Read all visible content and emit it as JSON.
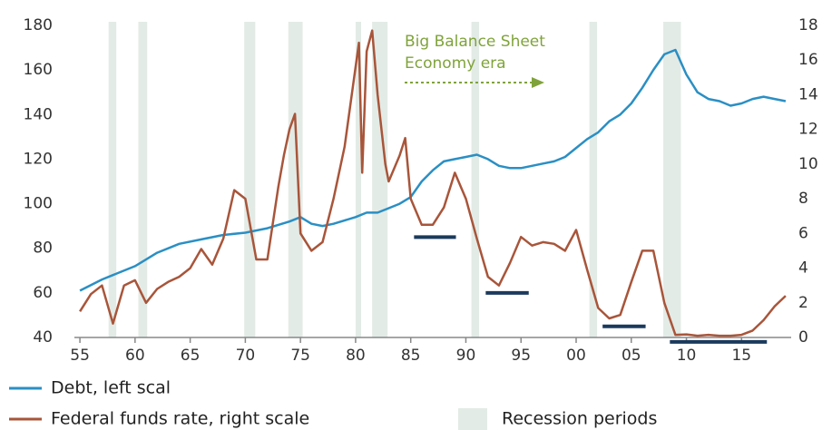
{
  "chart_data": {
    "type": "line",
    "annotation": [
      "Big Balance Sheet",
      "Economy era"
    ],
    "xlim": [
      1954.5,
      2019.5
    ],
    "xticks": [
      {
        "value": 1955,
        "label": "55"
      },
      {
        "value": 1960,
        "label": "60"
      },
      {
        "value": 1965,
        "label": "65"
      },
      {
        "value": 1970,
        "label": "70"
      },
      {
        "value": 1975,
        "label": "75"
      },
      {
        "value": 1980,
        "label": "80"
      },
      {
        "value": 1985,
        "label": "85"
      },
      {
        "value": 1990,
        "label": "90"
      },
      {
        "value": 1995,
        "label": "95"
      },
      {
        "value": 2000,
        "label": "00"
      },
      {
        "value": 2005,
        "label": "05"
      },
      {
        "value": 2010,
        "label": "10"
      },
      {
        "value": 2015,
        "label": "15"
      }
    ],
    "ylim": [
      40,
      180
    ],
    "yticks": [
      40,
      60,
      80,
      100,
      120,
      140,
      160,
      180
    ],
    "y2lim": [
      0,
      18
    ],
    "y2ticks": [
      0,
      2,
      4,
      6,
      8,
      10,
      12,
      14,
      16,
      18
    ],
    "series": [
      {
        "name": "Debt, left scal",
        "color": "#2a8fc4",
        "x": [
          1955,
          1957,
          1958,
          1960,
          1962,
          1964,
          1966,
          1968,
          1970,
          1972,
          1974,
          1975,
          1976,
          1977,
          1978,
          1980,
          1981,
          1982,
          1983,
          1984,
          1985,
          1986,
          1987,
          1988,
          1989,
          1990,
          1991,
          1992,
          1993,
          1994,
          1995,
          1996,
          1997,
          1998,
          1999,
          2000,
          2001,
          2002,
          2003,
          2004,
          2005,
          2006,
          2007,
          2008,
          2009,
          2010,
          2011,
          2012,
          2013,
          2014,
          2015,
          2016,
          2017,
          2018,
          2019
        ],
        "values": [
          61,
          66,
          68,
          72,
          78,
          82,
          84,
          86,
          87,
          89,
          92,
          94,
          91,
          90,
          91,
          94,
          96,
          96,
          98,
          100,
          103,
          110,
          115,
          119,
          120,
          121,
          122,
          120,
          117,
          116,
          116,
          117,
          118,
          119,
          121,
          125,
          129,
          132,
          137,
          140,
          145,
          152,
          160,
          167,
          169,
          158,
          150,
          147,
          146,
          144,
          145,
          147,
          148,
          147,
          146
        ]
      },
      {
        "name": "Federal funds rate, right scale",
        "color": "#a8553a",
        "axis": "y2",
        "x": [
          1955,
          1956,
          1957,
          1958,
          1959,
          1960,
          1961,
          1962,
          1963,
          1964,
          1965,
          1966,
          1967,
          1968,
          1969,
          1970,
          1971,
          1972,
          1973,
          1973.5,
          1974,
          1974.5,
          1975,
          1976,
          1977,
          1978,
          1979,
          1980.3,
          1980.6,
          1981,
          1981.5,
          1982,
          1982.7,
          1983,
          1984,
          1984.5,
          1985,
          1986,
          1987,
          1988,
          1989,
          1990,
          1991,
          1992,
          1993,
          1994,
          1995,
          1996,
          1997,
          1998,
          1999,
          2000,
          2001,
          2002,
          2003,
          2004,
          2005,
          2006,
          2007,
          2008,
          2009,
          2010,
          2011,
          2012,
          2013,
          2014,
          2015,
          2016,
          2017,
          2018,
          2019
        ],
        "values": [
          1.5,
          2.5,
          3.0,
          0.8,
          3.0,
          3.3,
          2.0,
          2.8,
          3.2,
          3.5,
          4.0,
          5.1,
          4.2,
          5.7,
          8.5,
          8.0,
          4.5,
          4.5,
          8.7,
          10.5,
          12.0,
          12.9,
          6.0,
          5.0,
          5.5,
          8.0,
          11.0,
          17.0,
          9.5,
          16.5,
          17.7,
          14.0,
          10.0,
          9.0,
          10.5,
          11.5,
          8.0,
          6.5,
          6.5,
          7.5,
          9.5,
          8.0,
          5.7,
          3.5,
          3.0,
          4.3,
          5.8,
          5.3,
          5.5,
          5.4,
          5.0,
          6.2,
          3.9,
          1.7,
          1.1,
          1.3,
          3.2,
          5.0,
          5.0,
          2.0,
          0.15,
          0.18,
          0.1,
          0.15,
          0.1,
          0.1,
          0.15,
          0.4,
          1.0,
          1.8,
          2.4
        ]
      }
    ],
    "recession_label": "Recession periods",
    "recession_color": "#e3ebe6",
    "recessions": [
      [
        1957.6,
        1958.3
      ],
      [
        1960.3,
        1961.1
      ],
      [
        1969.9,
        1970.9
      ],
      [
        1973.9,
        1975.2
      ],
      [
        1980.0,
        1980.5
      ],
      [
        1981.5,
        1982.9
      ],
      [
        1990.5,
        1991.2
      ],
      [
        2001.2,
        2001.9
      ],
      [
        2007.9,
        2009.5
      ]
    ],
    "segment_color": "#1b3a5c",
    "segments": [
      {
        "x": [
          1985.3,
          1989.1
        ],
        "y": 85
      },
      {
        "x": [
          1991.8,
          1995.7
        ],
        "y": 60
      },
      {
        "x": [
          2002.4,
          2006.3
        ],
        "y": 45
      },
      {
        "x": [
          2008.5,
          2017.3
        ],
        "y": 38
      }
    ]
  }
}
